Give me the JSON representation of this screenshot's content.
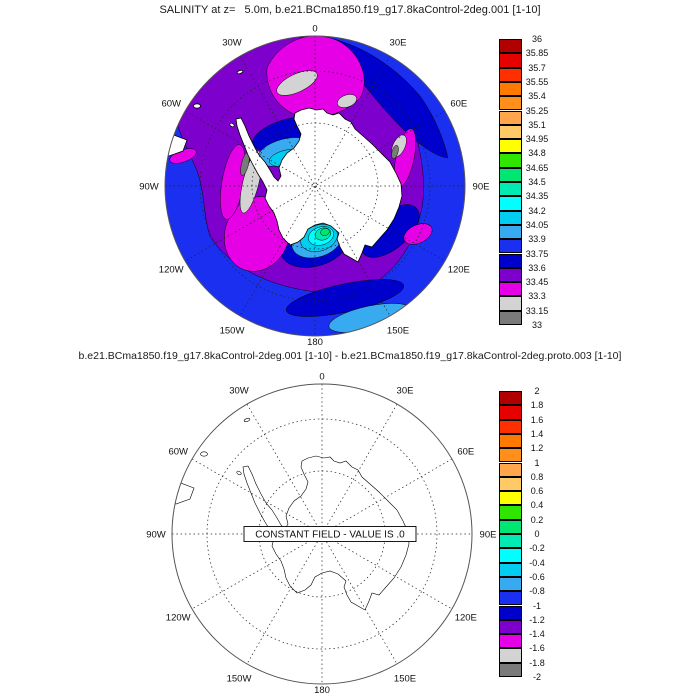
{
  "top_panel": {
    "title": "SALINITY at z=   5.0m, b.e21.BCma1850.f19_g17.8kaControl-2deg.001 [1-10]",
    "colorbar": {
      "labels": [
        "36",
        "35.85",
        "35.7",
        "35.55",
        "35.4",
        "35.25",
        "35.1",
        "34.95",
        "34.8",
        "34.65",
        "34.5",
        "34.35",
        "34.2",
        "34.05",
        "33.9",
        "33.75",
        "33.6",
        "33.45",
        "33.3",
        "33.15",
        "33"
      ]
    }
  },
  "bottom_panel": {
    "title": "b.e21.BCma1850.f19_g17.8kaControl-2deg.001 [1-10] - b.e21.BCma1850.f19_g17.8kaControl-2deg.proto.003 [1-10]",
    "constant_field_label": "CONSTANT FIELD - VALUE IS .0",
    "colorbar": {
      "labels": [
        "2",
        "1.8",
        "1.6",
        "1.4",
        "1.2",
        "1",
        "0.8",
        "0.6",
        "0.4",
        "0.2",
        "0",
        "-0.2",
        "-0.4",
        "-0.6",
        "-0.8",
        "-1",
        "-1.2",
        "-1.4",
        "-1.6",
        "-1.8",
        "-2"
      ]
    }
  },
  "palette": [
    "#b00000",
    "#e60000",
    "#ff3000",
    "#ff7800",
    "#ff8f1a",
    "#ffa64d",
    "#ffc966",
    "#ffff00",
    "#2ee600",
    "#00e673",
    "#00eab3",
    "#00ffff",
    "#00cdf0",
    "#38aaef",
    "#1a2ff0",
    "#0000cc",
    "#7d00cc",
    "#e600e6",
    "#d3d3d3",
    "#7a7a7a"
  ],
  "maps": {
    "meridian_labels": [
      {
        "text": "0",
        "angle": 0
      },
      {
        "text": "30E",
        "angle": 30
      },
      {
        "text": "60E",
        "angle": 60
      },
      {
        "text": "90E",
        "angle": 90
      },
      {
        "text": "120E",
        "angle": 120
      },
      {
        "text": "150E",
        "angle": 150
      },
      {
        "text": "180",
        "angle": 180
      },
      {
        "text": "150W",
        "angle": 210
      },
      {
        "text": "120W",
        "angle": 240
      },
      {
        "text": "90W",
        "angle": 270
      },
      {
        "text": "60W",
        "angle": 300
      },
      {
        "text": "30W",
        "angle": 330
      }
    ]
  },
  "chart_data": [
    {
      "type": "heatmap",
      "subtype": "polar-stereographic-filled-contour-map",
      "title": "SALINITY at z=   5.0m, b.e21.BCma1850.f19_g17.8kaControl-2deg.001 [1-10]",
      "region": "South polar view, Antarctica and Southern Ocean",
      "contour_levels": [
        33,
        33.15,
        33.3,
        33.45,
        33.6,
        33.75,
        33.9,
        34.05,
        34.2,
        34.35,
        34.5,
        34.65,
        34.8,
        34.95,
        35.1,
        35.25,
        35.4,
        35.55,
        35.7,
        35.85,
        36
      ],
      "colorbar_range": [
        33,
        36
      ],
      "legend_position": "right",
      "grid": "dashed meridians every 30 deg, two dashed latitude circles",
      "meridian_tick_labels": [
        "0",
        "30E",
        "60E",
        "90E",
        "120E",
        "150E",
        "180",
        "150W",
        "120W",
        "90W",
        "60W",
        "30W"
      ],
      "observed_field_summary": {
        "open_ocean_blue": "33.6-33.9",
        "navy_bands": "33.6-33.75",
        "purple_band": "33.45-33.6",
        "magenta_patches": "33.3-33.45",
        "light_gray_patches": "33.15-33.3",
        "dark_gray_slivers": "33-33.15",
        "weddell_coastal_cyan": "33.9-34.2",
        "ross_sea_maximum_green": "34.5-34.8"
      }
    },
    {
      "type": "heatmap",
      "subtype": "polar-stereographic-difference-map",
      "title": "b.e21.BCma1850.f19_g17.8kaControl-2deg.001 [1-10] - b.e21.BCma1850.f19_g17.8kaControl-2deg.proto.003 [1-10]",
      "annotation": "CONSTANT FIELD - VALUE IS .0",
      "constant_field_value": 0,
      "contour_levels": [
        -2,
        -1.8,
        -1.6,
        -1.4,
        -1.2,
        -1,
        -0.8,
        -0.6,
        -0.4,
        -0.2,
        0,
        0.2,
        0.4,
        0.6,
        0.8,
        1,
        1.2,
        1.4,
        1.6,
        1.8,
        2
      ],
      "colorbar_range": [
        -2,
        2
      ],
      "legend_position": "right",
      "grid": "dashed meridians every 30 deg, two dashed latitude circles",
      "meridian_tick_labels": [
        "0",
        "30E",
        "60E",
        "90E",
        "120E",
        "150E",
        "180",
        "150W",
        "120W",
        "90W",
        "60W",
        "30W"
      ]
    }
  ]
}
